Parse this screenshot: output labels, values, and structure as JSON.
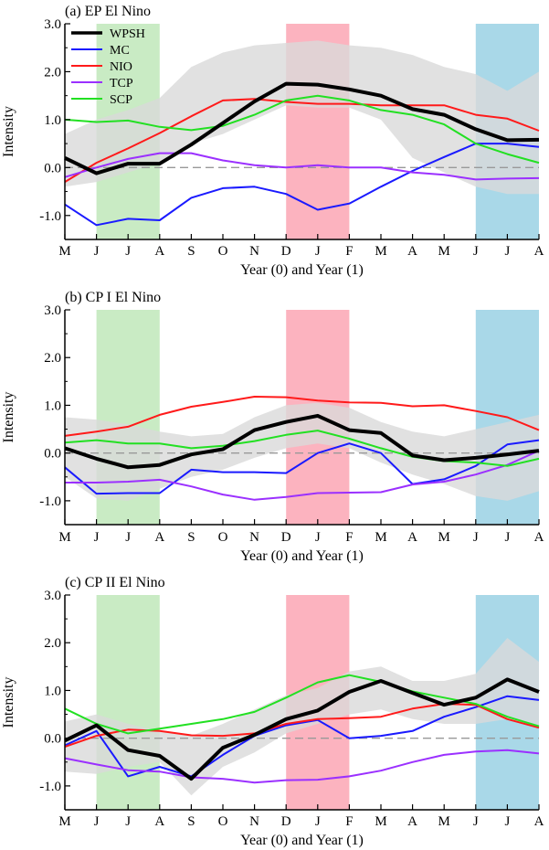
{
  "chart_data": [
    {
      "type": "line",
      "title": "(a) EP El Nino",
      "xlabel": "Year (0) and Year (1)",
      "ylabel": "Intensity",
      "ylim": [
        -1.5,
        3.0
      ],
      "yticks": [
        "3.0",
        "2.0",
        "1.0",
        "0.0",
        "-1.0"
      ],
      "categories": [
        "M",
        "J",
        "J",
        "A",
        "S",
        "O",
        "N",
        "D",
        "J",
        "F",
        "M",
        "A",
        "M",
        "J",
        "J",
        "A"
      ],
      "highlights": [
        {
          "from": 1,
          "to": 3,
          "color": "#c9ebc4"
        },
        {
          "from": 7,
          "to": 9,
          "color": "#fcb3bf"
        },
        {
          "from": 13,
          "to": 15,
          "color": "#a9d8e8"
        }
      ],
      "band_lower": [
        -0.4,
        -0.3,
        -0.1,
        0.1,
        0.5,
        0.7,
        1.0,
        1.3,
        1.25,
        1.25,
        1.0,
        0.2,
        -0.1,
        -0.4,
        -0.55,
        -0.55
      ],
      "band_upper": [
        0.7,
        1.0,
        1.2,
        1.45,
        2.1,
        2.4,
        2.55,
        2.6,
        2.65,
        2.55,
        2.5,
        2.35,
        2.1,
        1.95,
        1.6,
        2.0
      ],
      "legend": {
        "position": "top-left"
      },
      "series": [
        {
          "name": "WPSH",
          "color": "#000000",
          "width": 4,
          "values": [
            0.2,
            -0.12,
            0.08,
            0.08,
            0.48,
            0.93,
            1.38,
            1.75,
            1.73,
            1.63,
            1.5,
            1.22,
            1.1,
            0.8,
            0.57,
            0.58
          ]
        },
        {
          "name": "MC",
          "color": "#1a1aff",
          "width": 2,
          "values": [
            -0.77,
            -1.2,
            -1.07,
            -1.1,
            -0.63,
            -0.43,
            -0.4,
            -0.55,
            -0.88,
            -0.75,
            -0.4,
            -0.07,
            0.22,
            0.5,
            0.5,
            0.43
          ]
        },
        {
          "name": "NIO",
          "color": "#ff1a1a",
          "width": 2,
          "values": [
            -0.3,
            0.1,
            0.4,
            0.72,
            1.07,
            1.4,
            1.43,
            1.37,
            1.33,
            1.33,
            1.3,
            1.3,
            1.3,
            1.1,
            1.02,
            0.77
          ]
        },
        {
          "name": "TCP",
          "color": "#9b30ff",
          "width": 2,
          "values": [
            -0.2,
            0.0,
            0.18,
            0.3,
            0.3,
            0.15,
            0.05,
            0.0,
            0.05,
            0.0,
            0.0,
            -0.1,
            -0.15,
            -0.25,
            -0.23,
            -0.22
          ]
        },
        {
          "name": "SCP",
          "color": "#22e022",
          "width": 2,
          "values": [
            1.0,
            0.95,
            0.98,
            0.85,
            0.78,
            0.87,
            1.1,
            1.4,
            1.5,
            1.4,
            1.2,
            1.1,
            0.9,
            0.5,
            0.28,
            0.1
          ]
        }
      ]
    },
    {
      "type": "line",
      "title": "(b) CP I El Nino",
      "xlabel": "Year (0) and Year (1)",
      "ylabel": "Intensity",
      "ylim": [
        -1.5,
        3.0
      ],
      "yticks": [
        "3.0",
        "2.0",
        "1.0",
        "0.0",
        "-1.0"
      ],
      "categories": [
        "M",
        "J",
        "J",
        "A",
        "S",
        "O",
        "N",
        "D",
        "J",
        "F",
        "M",
        "A",
        "M",
        "J",
        "J",
        "A"
      ],
      "highlights": [
        {
          "from": 1,
          "to": 3,
          "color": "#c9ebc4"
        },
        {
          "from": 7,
          "to": 9,
          "color": "#fcb3bf"
        },
        {
          "from": 13,
          "to": 15,
          "color": "#a9d8e8"
        }
      ],
      "band_lower": [
        -0.5,
        -0.95,
        -1.0,
        -0.75,
        -0.5,
        -0.35,
        -0.1,
        0.1,
        0.2,
        0.1,
        -0.2,
        -0.45,
        -0.65,
        -0.9,
        -1.0,
        -0.8
      ],
      "band_upper": [
        0.75,
        0.7,
        0.6,
        0.45,
        0.35,
        0.4,
        0.75,
        1.0,
        1.05,
        0.95,
        0.65,
        0.45,
        0.35,
        0.5,
        0.65,
        0.8
      ],
      "series": [
        {
          "name": "WPSH",
          "values": [
            0.1,
            -0.12,
            -0.3,
            -0.25,
            -0.03,
            0.08,
            0.48,
            0.65,
            0.78,
            0.48,
            0.42,
            -0.05,
            -0.15,
            -0.1,
            -0.03,
            0.05
          ]
        },
        {
          "name": "MC",
          "values": [
            -0.3,
            -0.85,
            -0.84,
            -0.84,
            -0.35,
            -0.4,
            -0.4,
            -0.42,
            0.0,
            0.2,
            0.0,
            -0.65,
            -0.55,
            -0.27,
            0.18,
            0.27
          ]
        },
        {
          "name": "NIO",
          "values": [
            0.36,
            0.45,
            0.55,
            0.8,
            0.97,
            1.07,
            1.18,
            1.17,
            1.1,
            1.06,
            1.05,
            0.98,
            1.0,
            0.88,
            0.75,
            0.48
          ]
        },
        {
          "name": "TCP",
          "values": [
            -0.62,
            -0.62,
            -0.6,
            -0.56,
            -0.7,
            -0.87,
            -0.98,
            -0.92,
            -0.84,
            -0.83,
            -0.82,
            -0.66,
            -0.6,
            -0.45,
            -0.25,
            0.05
          ]
        },
        {
          "name": "SCP",
          "values": [
            0.22,
            0.27,
            0.2,
            0.2,
            0.1,
            0.15,
            0.25,
            0.38,
            0.47,
            0.3,
            0.1,
            -0.08,
            -0.17,
            -0.2,
            -0.27,
            -0.12
          ]
        }
      ]
    },
    {
      "type": "line",
      "title": "(c) CP II El Nino",
      "xlabel": "Year (0) and Year (1)",
      "ylabel": "Intensity",
      "ylim": [
        -1.5,
        3.0
      ],
      "yticks": [
        "3.0",
        "2.0",
        "1.0",
        "0.0",
        "-1.0"
      ],
      "categories": [
        "M",
        "J",
        "J",
        "A",
        "S",
        "O",
        "N",
        "D",
        "J",
        "F",
        "M",
        "A",
        "M",
        "J",
        "J",
        "A"
      ],
      "highlights": [
        {
          "from": 1,
          "to": 3,
          "color": "#c9ebc4"
        },
        {
          "from": 7,
          "to": 9,
          "color": "#fcb3bf"
        },
        {
          "from": 13,
          "to": 15,
          "color": "#a9d8e8"
        }
      ],
      "band_lower": [
        -0.7,
        -0.75,
        -0.6,
        -0.5,
        -1.2,
        -0.6,
        -0.3,
        0.1,
        0.3,
        0.5,
        0.6,
        0.4,
        0.3,
        0.3,
        0.4,
        0.2
      ],
      "band_upper": [
        0.35,
        0.5,
        0.3,
        0.15,
        0.05,
        0.3,
        0.6,
        0.9,
        1.05,
        1.4,
        1.5,
        1.2,
        1.2,
        1.35,
        2.1,
        1.6
      ],
      "series": [
        {
          "name": "WPSH",
          "values": [
            -0.05,
            0.27,
            -0.25,
            -0.37,
            -0.85,
            -0.2,
            0.07,
            0.4,
            0.58,
            0.97,
            1.2,
            0.95,
            0.7,
            0.85,
            1.23,
            0.97
          ]
        },
        {
          "name": "MC",
          "values": [
            -0.15,
            0.15,
            -0.8,
            -0.6,
            -0.8,
            -0.35,
            0.05,
            0.27,
            0.38,
            0.0,
            0.05,
            0.15,
            0.45,
            0.65,
            0.88,
            0.8
          ]
        },
        {
          "name": "NIO",
          "values": [
            -0.18,
            0.05,
            0.18,
            0.15,
            0.06,
            0.05,
            0.1,
            0.3,
            0.4,
            0.42,
            0.45,
            0.62,
            0.72,
            0.7,
            0.4,
            0.22
          ]
        },
        {
          "name": "TCP",
          "values": [
            -0.42,
            -0.55,
            -0.67,
            -0.7,
            -0.82,
            -0.85,
            -0.93,
            -0.88,
            -0.87,
            -0.8,
            -0.68,
            -0.5,
            -0.35,
            -0.28,
            -0.25,
            -0.32
          ]
        },
        {
          "name": "SCP",
          "values": [
            0.62,
            0.3,
            0.1,
            0.2,
            0.3,
            0.4,
            0.55,
            0.85,
            1.17,
            1.32,
            1.18,
            0.98,
            0.85,
            0.72,
            0.45,
            0.25
          ]
        }
      ]
    }
  ],
  "colors": {
    "band": "#d9d9d9",
    "zero_line": "#999999",
    "axis": "#000000"
  }
}
